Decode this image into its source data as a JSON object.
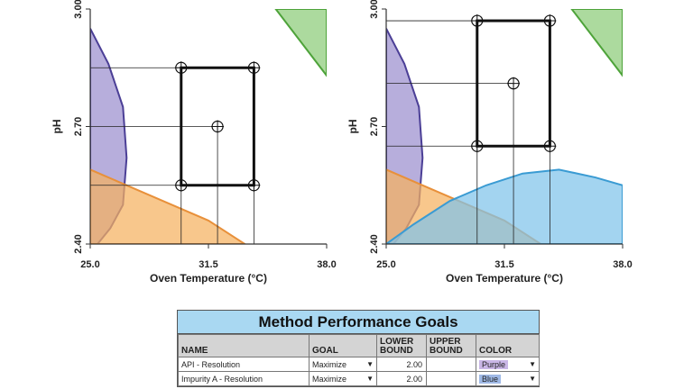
{
  "chart_data": [
    {
      "type": "contour",
      "xlabel": "Oven Temperature (°C)",
      "ylabel": "pH",
      "xlim": [
        25.0,
        38.0
      ],
      "ylim": [
        2.4,
        3.0
      ],
      "x_ticks": [
        "25.0",
        "31.5",
        "38.0"
      ],
      "y_ticks": [
        "2.40",
        "2.70",
        "3.00"
      ],
      "design_space": {
        "x": [
          30.0,
          34.0
        ],
        "y": [
          2.55,
          2.85
        ]
      },
      "center_point": {
        "x": 32.0,
        "y": 2.7
      },
      "regions": [
        {
          "color": "#9b8fcf",
          "points": [
            [
              25.0,
              2.95
            ],
            [
              26.0,
              2.86
            ],
            [
              26.8,
              2.75
            ],
            [
              27.0,
              2.62
            ],
            [
              26.8,
              2.5
            ],
            [
              26.1,
              2.44
            ],
            [
              25.4,
              2.4
            ],
            [
              25.0,
              2.4
            ]
          ]
        },
        {
          "color": "#f5b25f",
          "points": [
            [
              25.0,
              2.59
            ],
            [
              26.5,
              2.56
            ],
            [
              29.0,
              2.51
            ],
            [
              31.5,
              2.46
            ],
            [
              33.5,
              2.4
            ],
            [
              25.0,
              2.4
            ]
          ]
        },
        {
          "color": "#8ccc79",
          "points": [
            [
              35.2,
              3.0
            ],
            [
              38.0,
              3.0
            ],
            [
              38.0,
              2.83
            ]
          ]
        }
      ]
    },
    {
      "type": "contour",
      "xlabel": "Oven Temperature (°C)",
      "ylabel": "pH",
      "xlim": [
        25.0,
        38.0
      ],
      "ylim": [
        2.4,
        3.0
      ],
      "x_ticks": [
        "25.0",
        "31.5",
        "38.0"
      ],
      "y_ticks": [
        "2.40",
        "2.70",
        "3.00"
      ],
      "design_space": {
        "x": [
          30.0,
          34.0
        ],
        "y": [
          2.65,
          2.97
        ]
      },
      "center_point": {
        "x": 32.0,
        "y": 2.81
      },
      "regions": [
        {
          "color": "#9b8fcf",
          "points": [
            [
              25.0,
              2.95
            ],
            [
              26.0,
              2.86
            ],
            [
              26.8,
              2.75
            ],
            [
              27.0,
              2.62
            ],
            [
              26.8,
              2.5
            ],
            [
              26.1,
              2.44
            ],
            [
              25.4,
              2.4
            ],
            [
              25.0,
              2.4
            ]
          ]
        },
        {
          "color": "#f5b25f",
          "points": [
            [
              25.0,
              2.59
            ],
            [
              26.5,
              2.56
            ],
            [
              29.0,
              2.51
            ],
            [
              31.5,
              2.46
            ],
            [
              33.5,
              2.4
            ],
            [
              25.0,
              2.4
            ]
          ]
        },
        {
          "color": "#8ccc79",
          "points": [
            [
              35.2,
              3.0
            ],
            [
              38.0,
              3.0
            ],
            [
              38.0,
              2.83
            ]
          ]
        },
        {
          "color": "#7fc4ea",
          "points": [
            [
              25.0,
              2.4
            ],
            [
              26.5,
              2.45
            ],
            [
              28.5,
              2.51
            ],
            [
              30.5,
              2.55
            ],
            [
              32.5,
              2.58
            ],
            [
              34.5,
              2.59
            ],
            [
              36.5,
              2.57
            ],
            [
              38.0,
              2.55
            ],
            [
              38.0,
              2.4
            ]
          ]
        }
      ]
    }
  ],
  "goals": {
    "title": "Method Performance Goals",
    "headers": {
      "name": "NAME",
      "goal": "GOAL",
      "lower": "LOWER BOUND",
      "upper": "UPPER BOUND",
      "color": "COLOR"
    },
    "rows": [
      {
        "name": "API - Resolution",
        "goal": "Maximize",
        "lower": "2.00",
        "upper": "",
        "color": "Purple",
        "swatch": "#c9b6e6"
      },
      {
        "name": "Impurity A - Resolution",
        "goal": "Maximize",
        "lower": "2.00",
        "upper": "",
        "color": "Blue",
        "swatch": "#9fb9e6"
      }
    ]
  }
}
